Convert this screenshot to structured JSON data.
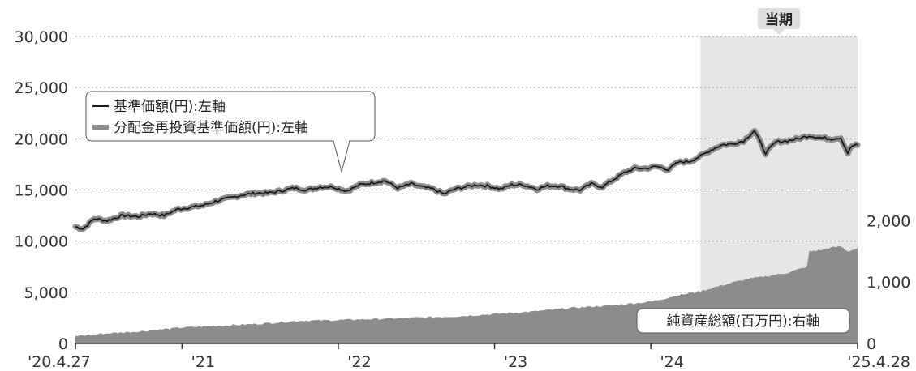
{
  "chart_data": {
    "type": "line",
    "x_range": [
      "2020-04-27",
      "2025-04-28"
    ],
    "x_ticks": [
      {
        "label": "'20.4.27",
        "date": "2020-04-27"
      },
      {
        "label": "'21",
        "date": "2021-01-01"
      },
      {
        "label": "'22",
        "date": "2022-01-01"
      },
      {
        "label": "'23",
        "date": "2023-01-01"
      },
      {
        "label": "'24",
        "date": "2024-01-01"
      },
      {
        "label": "'25.4.28",
        "date": "2025-04-28"
      }
    ],
    "y_left": {
      "range": [
        0,
        30000
      ],
      "ticks": [
        "0",
        "5,000",
        "10,000",
        "15,000",
        "20,000",
        "25,000",
        "30,000"
      ],
      "tick_values": [
        0,
        5000,
        10000,
        15000,
        20000,
        25000,
        30000
      ]
    },
    "y_right": {
      "range": [
        0,
        5000
      ],
      "ticks": [
        "0",
        "1,000",
        "2,000"
      ],
      "tick_values": [
        0,
        1000,
        2000
      ]
    },
    "grid": "horizontal dotted",
    "period_highlight": {
      "label": "当期",
      "start": "2024-04-26",
      "end": "2025-04-28"
    },
    "legend": {
      "line1": "基準価額(円):左軸",
      "line2": "分配金再投資基準価額(円):左軸",
      "placement": "callout near top-left"
    },
    "area_label": "純資産総額(百万円):右軸",
    "series": [
      {
        "name": "基準価額(円)",
        "axis": "left",
        "style": "line",
        "color": "#1a1a1a",
        "points": [
          [
            "2020-04-27",
            11400
          ],
          [
            "2020-05-15",
            11200
          ],
          [
            "2020-06-10",
            12200
          ],
          [
            "2020-07-10",
            12000
          ],
          [
            "2020-08-15",
            12500
          ],
          [
            "2020-09-20",
            12400
          ],
          [
            "2020-10-20",
            12700
          ],
          [
            "2020-11-20",
            12500
          ],
          [
            "2020-12-20",
            13100
          ],
          [
            "2021-01-20",
            13300
          ],
          [
            "2021-02-20",
            13500
          ],
          [
            "2021-03-20",
            13900
          ],
          [
            "2021-04-20",
            14200
          ],
          [
            "2021-05-20",
            14500
          ],
          [
            "2021-06-20",
            14700
          ],
          [
            "2021-07-20",
            14700
          ],
          [
            "2021-08-20",
            14900
          ],
          [
            "2021-09-20",
            15200
          ],
          [
            "2021-10-20",
            15000
          ],
          [
            "2021-11-20",
            15300
          ],
          [
            "2021-12-20",
            15300
          ],
          [
            "2022-01-20",
            14900
          ],
          [
            "2022-02-20",
            15500
          ],
          [
            "2022-03-20",
            15700
          ],
          [
            "2022-04-20",
            15900
          ],
          [
            "2022-05-20",
            15200
          ],
          [
            "2022-06-20",
            15600
          ],
          [
            "2022-07-15",
            15300
          ],
          [
            "2022-08-10",
            15100
          ],
          [
            "2022-09-05",
            14600
          ],
          [
            "2022-10-01",
            15100
          ],
          [
            "2022-10-25",
            15300
          ],
          [
            "2022-11-20",
            15500
          ],
          [
            "2022-12-15",
            15400
          ],
          [
            "2023-01-15",
            15100
          ],
          [
            "2023-02-10",
            15500
          ],
          [
            "2023-03-10",
            15500
          ],
          [
            "2023-04-10",
            15100
          ],
          [
            "2023-05-05",
            15400
          ],
          [
            "2023-06-01",
            15400
          ],
          [
            "2023-06-25",
            15100
          ],
          [
            "2023-07-20",
            15000
          ],
          [
            "2023-08-15",
            15600
          ],
          [
            "2023-09-10",
            15300
          ],
          [
            "2023-10-05",
            16000
          ],
          [
            "2023-11-01",
            16700
          ],
          [
            "2023-11-25",
            17100
          ],
          [
            "2023-12-20",
            17100
          ],
          [
            "2024-01-15",
            17300
          ],
          [
            "2024-02-10",
            17000
          ],
          [
            "2024-03-05",
            17700
          ],
          [
            "2024-04-01",
            17800
          ],
          [
            "2024-04-26",
            18300
          ],
          [
            "2024-05-20",
            18900
          ],
          [
            "2024-06-15",
            19400
          ],
          [
            "2024-07-10",
            19500
          ],
          [
            "2024-08-05",
            19800
          ],
          [
            "2024-08-30",
            20800
          ],
          [
            "2024-09-25",
            18600
          ],
          [
            "2024-10-20",
            19700
          ],
          [
            "2024-11-15",
            19800
          ],
          [
            "2024-12-10",
            20000
          ],
          [
            "2025-01-05",
            20300
          ],
          [
            "2025-02-01",
            20100
          ],
          [
            "2025-02-25",
            20000
          ],
          [
            "2025-03-20",
            20100
          ],
          [
            "2025-04-05",
            18600
          ],
          [
            "2025-04-15",
            19300
          ],
          [
            "2025-04-28",
            19400
          ]
        ]
      },
      {
        "name": "分配金再投資基準価額(円)",
        "axis": "left",
        "style": "thick-band",
        "color": "#8c8c8c",
        "points_same_as": "基準価額(円)"
      },
      {
        "name": "純資産総額(百万円)",
        "axis": "right",
        "style": "area",
        "color": "#8c8c8c",
        "points": [
          [
            "2020-04-27",
            120
          ],
          [
            "2020-07-01",
            160
          ],
          [
            "2020-10-01",
            200
          ],
          [
            "2021-01-01",
            260
          ],
          [
            "2021-04-01",
            290
          ],
          [
            "2021-07-01",
            320
          ],
          [
            "2021-10-01",
            370
          ],
          [
            "2022-01-01",
            380
          ],
          [
            "2022-04-01",
            400
          ],
          [
            "2022-07-01",
            420
          ],
          [
            "2022-10-01",
            440
          ],
          [
            "2023-01-01",
            480
          ],
          [
            "2023-04-01",
            520
          ],
          [
            "2023-07-01",
            580
          ],
          [
            "2023-10-01",
            620
          ],
          [
            "2024-01-01",
            680
          ],
          [
            "2024-03-01",
            780
          ],
          [
            "2024-04-26",
            850
          ],
          [
            "2024-06-01",
            920
          ],
          [
            "2024-07-15",
            1000
          ],
          [
            "2024-08-15",
            1050
          ],
          [
            "2024-10-01",
            1100
          ],
          [
            "2024-11-15",
            1150
          ],
          [
            "2024-12-31",
            1250
          ],
          [
            "2025-01-05",
            1500
          ],
          [
            "2025-02-01",
            1520
          ],
          [
            "2025-02-25",
            1560
          ],
          [
            "2025-03-20",
            1580
          ],
          [
            "2025-04-05",
            1500
          ],
          [
            "2025-04-28",
            1550
          ]
        ]
      }
    ]
  },
  "colors": {
    "grid": "#9a9a9a",
    "highlight": "#e6e6e6",
    "area": "#8c8c8c",
    "line": "#1a1a1a",
    "band": "#8c8c8c",
    "axis": "#333333",
    "badge": "#dedede"
  }
}
